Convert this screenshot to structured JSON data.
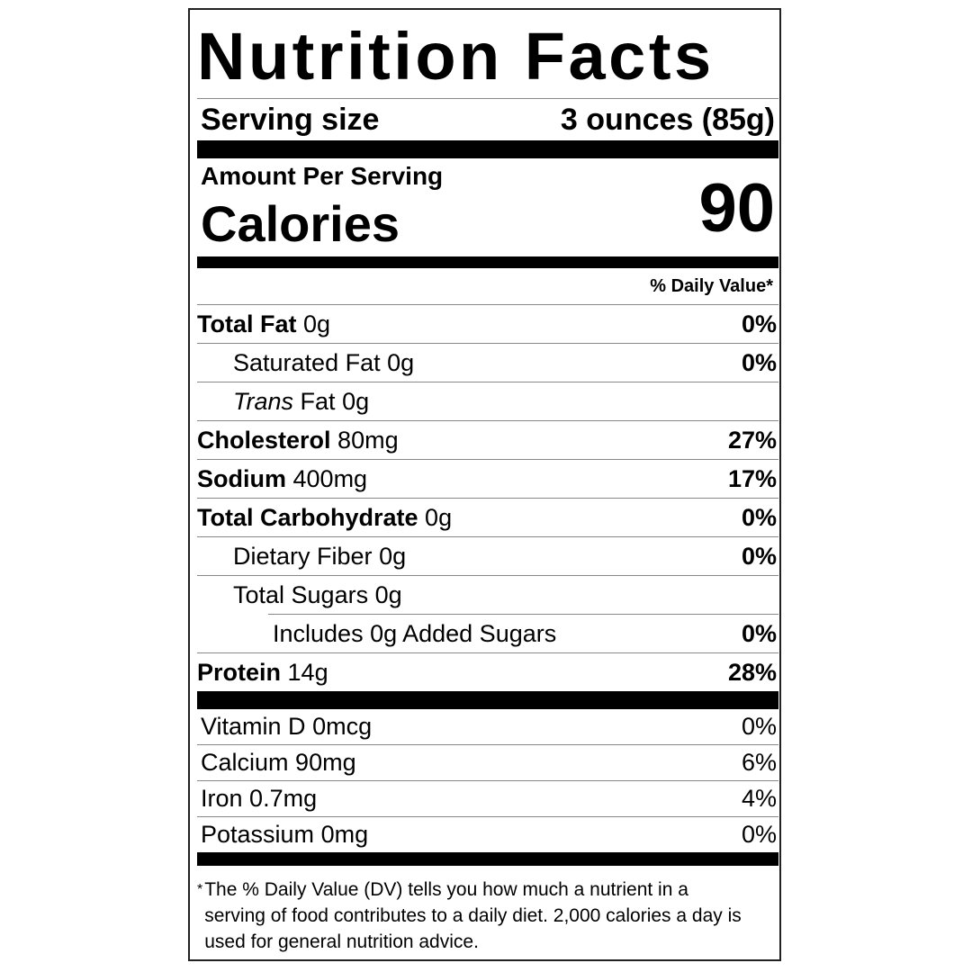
{
  "title": "Nutrition Facts",
  "serving": {
    "label": "Serving size",
    "value": "3 ounces (85g)"
  },
  "calories": {
    "heading": "Amount Per Serving",
    "label": "Calories",
    "value": 90
  },
  "daily_value_header": "% Daily Value*",
  "nutrients": [
    {
      "name": "Total Fat",
      "amount": "0g",
      "dv": "0%"
    },
    {
      "name": "Saturated Fat",
      "amount": "0g",
      "dv": "0%"
    },
    {
      "name_italic": "Trans",
      "name": "Fat",
      "amount": "0g"
    },
    {
      "name": "Cholesterol",
      "amount": "80mg",
      "dv": "27%"
    },
    {
      "name": "Sodium",
      "amount": "400mg",
      "dv": "17%"
    },
    {
      "name": "Total Carbohydrate",
      "amount": "0g",
      "dv": "0%"
    },
    {
      "name": "Dietary Fiber",
      "amount": "0g",
      "dv": "0%"
    },
    {
      "name": "Total Sugars",
      "amount": "0g"
    },
    {
      "name": "Includes 0g Added Sugars",
      "dv": "0%"
    },
    {
      "name": "Protein",
      "amount": "14g",
      "dv": "28%"
    }
  ],
  "vitamins": [
    {
      "name": "Vitamin D",
      "amount": "0mcg",
      "dv": "0%"
    },
    {
      "name": "Calcium",
      "amount": "90mg",
      "dv": "6%"
    },
    {
      "name": "Iron",
      "amount": "0.7mg",
      "dv": "4%"
    },
    {
      "name": "Potassium",
      "amount": "0mg",
      "dv": "0%"
    }
  ],
  "footnote": {
    "marker": "*",
    "text": "The % Daily Value (DV) tells you how much a nutrient in a serving of food contributes to a daily diet. 2,000 calories a day is used for general nutrition advice."
  }
}
